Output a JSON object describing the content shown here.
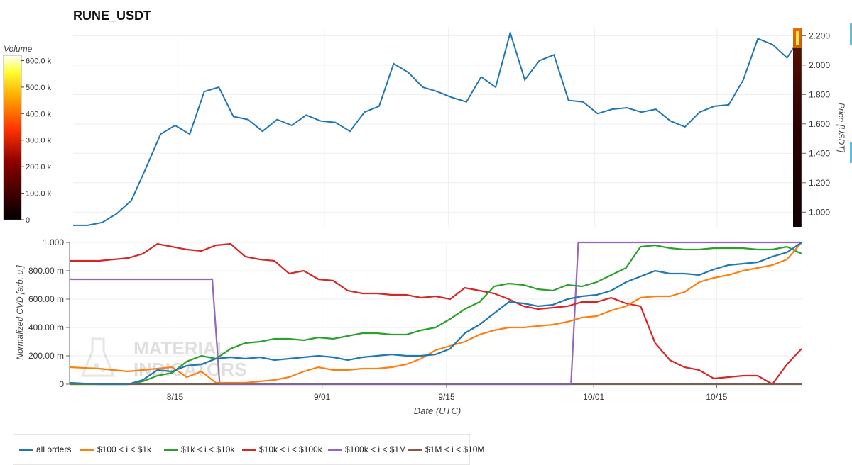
{
  "title": "RUNE_USDT",
  "colors": {
    "all_orders": "#1f77b4",
    "bin_100_1k": "#ff7f0e",
    "bin_1k_10k": "#2ca02c",
    "bin_10k_100k": "#d62728",
    "bin_100k_1m": "#9467bd",
    "bin_1m_10m": "#8c564b",
    "grid": "#eeeeee"
  },
  "chart_data": [
    {
      "type": "line",
      "name": "price",
      "title": "RUNE_USDT",
      "ylabel": "Price [USDT]",
      "ylim": [
        0.9,
        2.25
      ],
      "yticks": [
        "1.000",
        "1.200",
        "1.400",
        "1.600",
        "1.800",
        "2.000",
        "2.200"
      ],
      "ytick_values": [
        1.0,
        1.2,
        1.4,
        1.6,
        1.8,
        2.0,
        2.2
      ],
      "xlim": [
        0,
        100
      ],
      "series": [
        {
          "name": "price",
          "x": [
            0,
            2,
            4,
            6,
            8,
            10,
            12,
            14,
            16,
            18,
            20,
            22,
            24,
            26,
            28,
            30,
            32,
            34,
            36,
            38,
            40,
            42,
            44,
            46,
            48,
            50,
            52,
            54,
            56,
            58,
            60,
            62,
            64,
            66,
            68,
            70,
            72,
            74,
            76,
            78,
            80,
            82,
            84,
            86,
            88,
            90,
            92,
            94,
            96,
            98,
            100
          ],
          "values": [
            0.91,
            0.91,
            0.93,
            0.99,
            1.08,
            1.3,
            1.53,
            1.59,
            1.53,
            1.82,
            1.85,
            1.65,
            1.63,
            1.55,
            1.63,
            1.59,
            1.66,
            1.62,
            1.61,
            1.55,
            1.68,
            1.72,
            2.01,
            1.95,
            1.85,
            1.82,
            1.78,
            1.75,
            1.92,
            1.85,
            2.22,
            1.9,
            2.03,
            2.07,
            1.76,
            1.75,
            1.67,
            1.7,
            1.71,
            1.68,
            1.7,
            1.62,
            1.58,
            1.68,
            1.72,
            1.73,
            1.9,
            2.18,
            2.14,
            2.05,
            2.2
          ]
        }
      ]
    },
    {
      "type": "line",
      "name": "normalized-cvd",
      "xlabel": "Date (UTC)",
      "ylabel": "Normalized CVD [arb. u.]",
      "ylim": [
        0,
        1.0
      ],
      "yticks": [
        "0",
        "200.00 m",
        "400.00 m",
        "600.00 m",
        "800.00 m",
        "1.000"
      ],
      "ytick_values": [
        0,
        0.2,
        0.4,
        0.6,
        0.8,
        1.0
      ],
      "xlim": [
        0,
        100
      ],
      "xticks": [
        "8/15",
        "9/01",
        "9/15",
        "10/01",
        "10/15"
      ],
      "xtick_positions": [
        14.4,
        34.5,
        51.5,
        71.6,
        88.4
      ],
      "series": [
        {
          "name": "all orders",
          "color_key": "all_orders",
          "x": [
            0,
            4,
            8,
            10,
            12,
            14,
            16,
            18,
            20,
            22,
            24,
            26,
            28,
            30,
            32,
            34,
            36,
            38,
            40,
            42,
            44,
            46,
            48,
            50,
            52,
            54,
            56,
            58,
            60,
            62,
            64,
            66,
            68,
            70,
            72,
            74,
            76,
            78,
            80,
            82,
            84,
            86,
            88,
            90,
            92,
            94,
            96,
            98,
            100
          ],
          "values": [
            0.01,
            0.0,
            0.0,
            0.03,
            0.1,
            0.09,
            0.13,
            0.14,
            0.18,
            0.19,
            0.18,
            0.19,
            0.17,
            0.18,
            0.19,
            0.2,
            0.19,
            0.17,
            0.19,
            0.2,
            0.21,
            0.2,
            0.2,
            0.21,
            0.25,
            0.36,
            0.42,
            0.5,
            0.58,
            0.57,
            0.55,
            0.56,
            0.6,
            0.62,
            0.63,
            0.66,
            0.72,
            0.76,
            0.8,
            0.78,
            0.78,
            0.77,
            0.81,
            0.84,
            0.85,
            0.86,
            0.9,
            0.93,
            1.0
          ]
        },
        {
          "name": "$100 < i < $1k",
          "color_key": "bin_100_1k",
          "x": [
            0,
            4,
            6,
            8,
            10,
            12,
            14,
            16,
            18,
            20,
            22,
            24,
            26,
            28,
            30,
            32,
            34,
            36,
            38,
            40,
            42,
            44,
            46,
            48,
            50,
            52,
            54,
            56,
            58,
            60,
            62,
            64,
            66,
            68,
            70,
            72,
            74,
            76,
            78,
            80,
            82,
            84,
            86,
            88,
            90,
            92,
            94,
            96,
            98,
            100
          ],
          "values": [
            0.12,
            0.11,
            0.1,
            0.09,
            0.1,
            0.11,
            0.12,
            0.05,
            0.09,
            0.01,
            0.01,
            0.01,
            0.02,
            0.03,
            0.05,
            0.09,
            0.12,
            0.1,
            0.1,
            0.11,
            0.11,
            0.12,
            0.14,
            0.18,
            0.24,
            0.27,
            0.3,
            0.35,
            0.38,
            0.4,
            0.4,
            0.41,
            0.42,
            0.44,
            0.47,
            0.48,
            0.52,
            0.55,
            0.61,
            0.62,
            0.62,
            0.65,
            0.72,
            0.75,
            0.77,
            0.8,
            0.82,
            0.84,
            0.88,
            1.0
          ]
        },
        {
          "name": "$1k < i < $10k",
          "color_key": "bin_1k_10k",
          "x": [
            0,
            4,
            6,
            8,
            10,
            12,
            14,
            16,
            18,
            20,
            22,
            24,
            26,
            28,
            30,
            32,
            34,
            36,
            38,
            40,
            42,
            44,
            46,
            48,
            50,
            52,
            54,
            56,
            58,
            60,
            62,
            64,
            66,
            68,
            70,
            72,
            74,
            76,
            78,
            80,
            82,
            84,
            86,
            88,
            90,
            92,
            94,
            96,
            98,
            100
          ],
          "values": [
            0.0,
            0.0,
            0.0,
            0.0,
            0.02,
            0.06,
            0.08,
            0.16,
            0.2,
            0.18,
            0.25,
            0.29,
            0.3,
            0.32,
            0.32,
            0.31,
            0.33,
            0.32,
            0.34,
            0.36,
            0.36,
            0.35,
            0.35,
            0.38,
            0.4,
            0.46,
            0.53,
            0.58,
            0.69,
            0.71,
            0.7,
            0.67,
            0.66,
            0.7,
            0.69,
            0.72,
            0.77,
            0.82,
            0.97,
            0.98,
            0.96,
            0.95,
            0.95,
            0.96,
            0.96,
            0.96,
            0.95,
            0.95,
            0.97,
            0.92
          ]
        },
        {
          "name": "$10k < i < $100k",
          "color_key": "bin_10k_100k",
          "x": [
            0,
            4,
            8,
            10,
            12,
            14,
            16,
            18,
            20,
            22,
            24,
            26,
            28,
            30,
            32,
            34,
            36,
            38,
            40,
            42,
            44,
            46,
            48,
            50,
            52,
            54,
            56,
            58,
            60,
            62,
            64,
            66,
            68,
            70,
            72,
            74,
            76,
            78,
            80,
            82,
            84,
            86,
            88,
            90,
            92,
            94,
            96,
            98,
            100
          ],
          "values": [
            0.87,
            0.87,
            0.89,
            0.92,
            0.99,
            0.97,
            0.95,
            0.94,
            0.98,
            0.99,
            0.9,
            0.88,
            0.87,
            0.78,
            0.8,
            0.74,
            0.73,
            0.66,
            0.64,
            0.64,
            0.63,
            0.63,
            0.61,
            0.62,
            0.6,
            0.68,
            0.66,
            0.64,
            0.6,
            0.55,
            0.53,
            0.54,
            0.55,
            0.58,
            0.58,
            0.61,
            0.57,
            0.55,
            0.29,
            0.17,
            0.12,
            0.1,
            0.04,
            0.05,
            0.06,
            0.06,
            0.0,
            0.14,
            0.25
          ]
        },
        {
          "name": "$100k < i < $1M",
          "color_key": "bin_100k_1m",
          "x": [
            0,
            19.5,
            20.5,
            68.5,
            69.5,
            100
          ],
          "values": [
            0.74,
            0.74,
            0.0,
            0.0,
            1.0,
            1.0
          ]
        },
        {
          "name": "$1M < i < $10M",
          "color_key": "bin_1m_10m",
          "x": [
            0,
            100
          ],
          "values": [
            0.0,
            0.0
          ]
        }
      ]
    }
  ],
  "colorbar": {
    "label": "Volume",
    "ticks": [
      "600.0 k",
      "500.0 k",
      "400.0 k",
      "300.0 k",
      "200.0 k",
      "100.0 k",
      "0"
    ],
    "tick_values": [
      600,
      500,
      400,
      300,
      200,
      100,
      0
    ]
  },
  "legend": {
    "items": [
      {
        "label": "all orders",
        "color_key": "all_orders"
      },
      {
        "label": "$100 < i < $1k",
        "color_key": "bin_100_1k"
      },
      {
        "label": "$1k < i < $10k",
        "color_key": "bin_1k_10k"
      },
      {
        "label": "$10k < i < $100k",
        "color_key": "bin_10k_100k"
      },
      {
        "label": "$100k < i < $1M",
        "color_key": "bin_100k_1m"
      },
      {
        "label": "$1M < i < $10M",
        "color_key": "bin_1m_10m"
      }
    ]
  },
  "watermark": "MATERIAL INDICATORS"
}
